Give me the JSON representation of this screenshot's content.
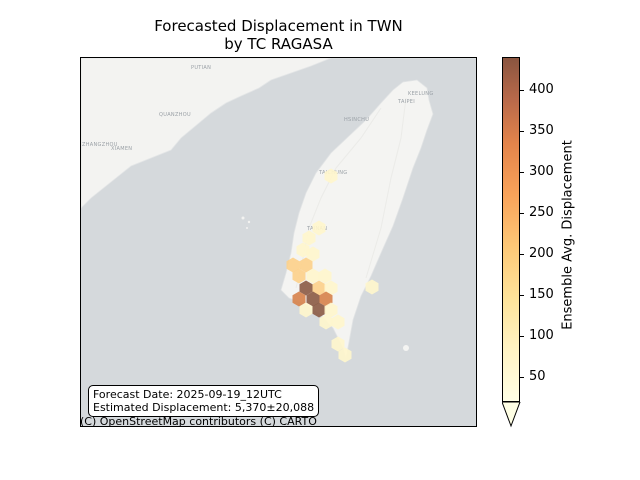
{
  "title_line1": "Forecasted Displacement in TWN",
  "title_line2": "by TC RAGASA",
  "info": {
    "forecast_date": "Forecast Date: 2025-09-19_12UTC",
    "estimated_displacement": "Estimated Displacement: 5,370±20,088"
  },
  "attribution": "(C) OpenStreetMap contributors (C) CARTO",
  "map_labels": [
    "PUTIAN",
    "QUANZHOU",
    "XIAMEN",
    "ZHANGZHOU",
    "TAIPEI",
    "KEELUNG",
    "HSINCHU",
    "TAICHUNG",
    "TAINAN"
  ],
  "colorbar": {
    "label": "Ensemble Avg. Displacement",
    "ticks": [
      "50",
      "100",
      "150",
      "200",
      "250",
      "300",
      "350",
      "400"
    ],
    "min": 20,
    "max": 440,
    "extend": "min",
    "colormap": "YlOrBr"
  },
  "colors": {
    "sea": "#d5d9dc",
    "land": "#f4f4f2",
    "hex_low": "#fff6cc",
    "hex_mid": "#fdd089",
    "hex_high": "#d7824a",
    "hex_max": "#8b5a44"
  }
}
